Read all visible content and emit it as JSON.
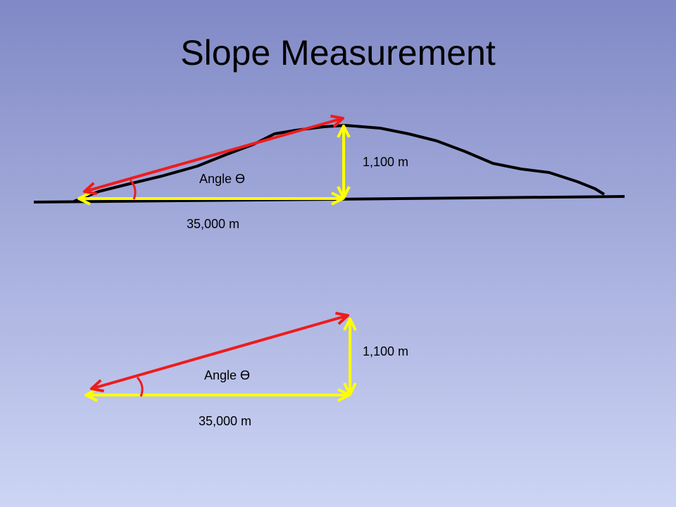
{
  "title": "Slope Measurement",
  "figures": [
    {
      "height_label": "1,100 m",
      "angle_label": "Angle Ɵ",
      "base_label": "35,000 m"
    },
    {
      "height_label": "1,100 m",
      "angle_label": "Angle Ɵ",
      "base_label": "35,000 m"
    }
  ]
}
